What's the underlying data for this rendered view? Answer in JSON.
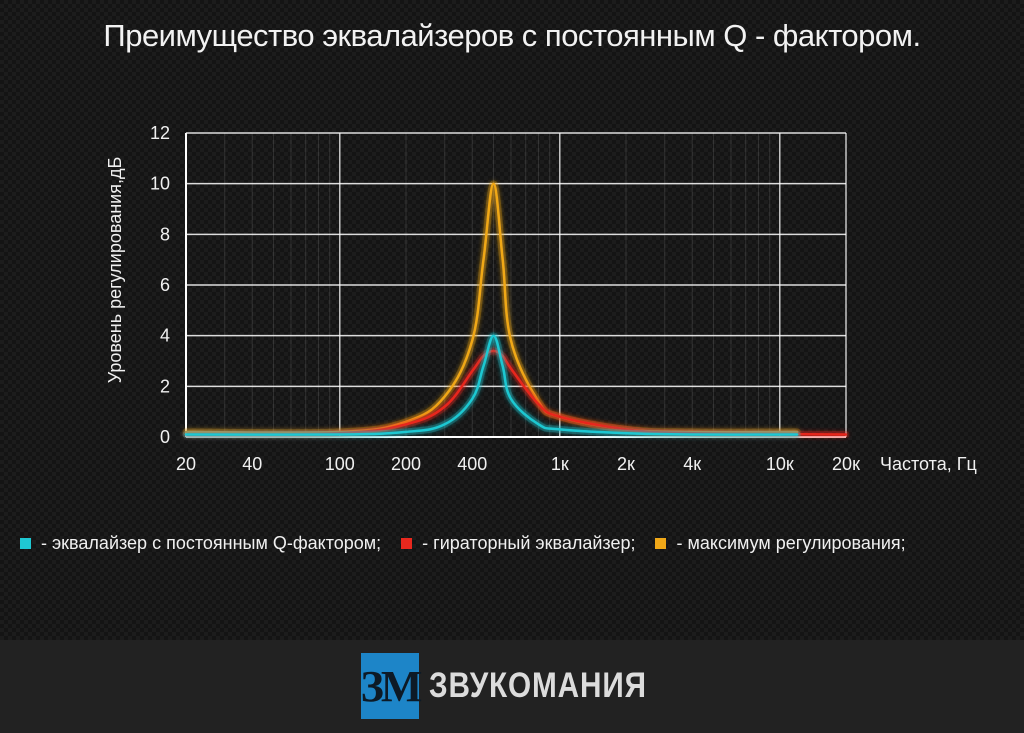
{
  "title": "Преимущество эквалайзеров с постоянным Q - фактором.",
  "legend": [
    {
      "label": "- эквалайзер с постоянным Q-фактором;",
      "color": "#1fc8d2"
    },
    {
      "label": "- гираторный эквалайзер;",
      "color": "#e8281e"
    },
    {
      "label": "- максимум регулирования;",
      "color": "#f0a818"
    }
  ],
  "footer": {
    "logo_mark": "ЗМ",
    "logo_text": "ЗВУКОМАНИЯ"
  },
  "chart_data": {
    "type": "line",
    "title": "Преимущество эквалайзеров с постоянным Q - фактором.",
    "xlabel": "Частота, Гц",
    "ylabel": "Уровень регулирования,дБ",
    "x_scale": "log",
    "xlim": [
      20,
      20000
    ],
    "ylim": [
      0,
      12
    ],
    "x_ticks": [
      20,
      40,
      100,
      200,
      400,
      1000,
      2000,
      4000,
      10000,
      20000
    ],
    "x_tick_labels": [
      "20",
      "40",
      "100",
      "200",
      "400",
      "1к",
      "2к",
      "4к",
      "10к",
      "20к"
    ],
    "y_ticks": [
      0,
      2,
      4,
      6,
      8,
      10,
      12
    ],
    "y_tick_labels": [
      "0",
      "2",
      "4",
      "6",
      "8",
      "10",
      "12"
    ],
    "grid": true,
    "series": [
      {
        "name": "- эквалайзер с постоянным Q-фактором;",
        "color": "#1fc8d2",
        "x": [
          20,
          100,
          200,
          300,
          400,
          450,
          500,
          550,
          600,
          800,
          1000,
          2000,
          4000,
          12000
        ],
        "y": [
          0.1,
          0.1,
          0.2,
          0.5,
          1.5,
          2.8,
          4.0,
          2.8,
          1.5,
          0.5,
          0.3,
          0.15,
          0.1,
          0.1
        ]
      },
      {
        "name": "- гираторный эквалайзер;",
        "color": "#e8281e",
        "x": [
          20,
          100,
          200,
          300,
          400,
          450,
          500,
          550,
          600,
          800,
          1000,
          2000,
          4000,
          20000
        ],
        "y": [
          0.1,
          0.15,
          0.5,
          1.2,
          2.6,
          3.2,
          3.4,
          3.2,
          2.7,
          1.3,
          0.8,
          0.3,
          0.15,
          0.1
        ]
      },
      {
        "name": "- максимум регулирования;",
        "color": "#f0a818",
        "x": [
          20,
          100,
          200,
          300,
          400,
          450,
          500,
          550,
          600,
          800,
          1000,
          2000,
          4000,
          12000
        ],
        "y": [
          0.2,
          0.2,
          0.6,
          1.6,
          3.8,
          7.0,
          10.0,
          7.0,
          3.8,
          1.4,
          0.8,
          0.3,
          0.2,
          0.2
        ]
      }
    ]
  }
}
